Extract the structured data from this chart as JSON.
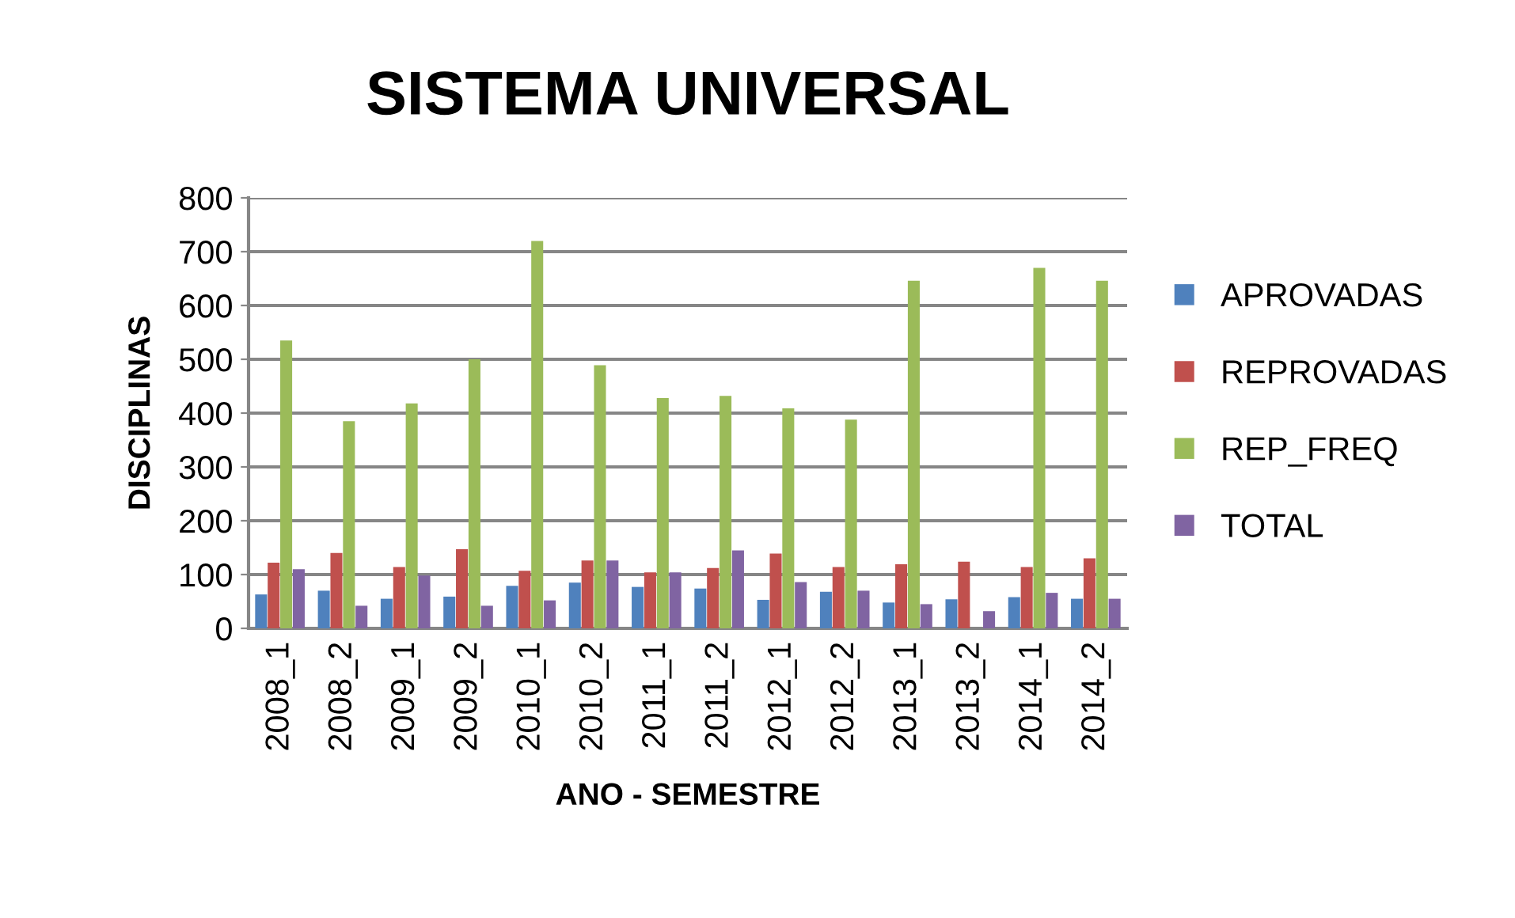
{
  "chart_data": {
    "type": "bar",
    "title": "SISTEMA UNIVERSAL",
    "xlabel": "ANO - SEMESTRE",
    "ylabel": "DISCIPLINAS",
    "categories": [
      "2008_1",
      "2008_2",
      "2009_1",
      "2009_2",
      "2010_1",
      "2010_2",
      "2011_1",
      "2011_2",
      "2012_1",
      "2012_2",
      "2013_1",
      "2013_2",
      "2014_1",
      "2014_2"
    ],
    "series": [
      {
        "name": "APROVADAS",
        "color": "#4f81bd",
        "values": [
          63,
          70,
          55,
          59,
          79,
          85,
          77,
          74,
          53,
          68,
          48,
          54,
          58,
          55
        ]
      },
      {
        "name": "REPROVADAS",
        "color": "#c0504d",
        "values": [
          122,
          140,
          114,
          147,
          107,
          126,
          104,
          112,
          139,
          114,
          119,
          124,
          114,
          130
        ]
      },
      {
        "name": "REP_FREQ",
        "color": "#9bbb59",
        "values": [
          535,
          385,
          418,
          500,
          720,
          489,
          428,
          432,
          409,
          388,
          646,
          null,
          670,
          646
        ]
      },
      {
        "name": "TOTAL",
        "color": "#8064a2",
        "values": [
          110,
          42,
          98,
          42,
          52,
          126,
          104,
          145,
          86,
          70,
          45,
          32,
          66,
          55
        ]
      }
    ],
    "ylim": [
      0,
      800
    ],
    "yticks": [
      0,
      100,
      200,
      300,
      400,
      500,
      600,
      700,
      800
    ],
    "grid": "y",
    "legend": "right"
  }
}
